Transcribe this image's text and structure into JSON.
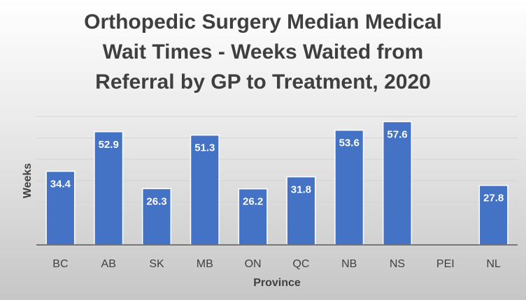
{
  "chart_data": {
    "type": "bar",
    "title": "Orthopedic Surgery Median Medical\nWait Times - Weeks Waited from\nReferral by GP to Treatment, 2020",
    "xlabel": "Province",
    "ylabel": "Weeks",
    "categories": [
      "BC",
      "AB",
      "SK",
      "MB",
      "ON",
      "QC",
      "NB",
      "NS",
      "PEI",
      "NL"
    ],
    "values": [
      34.4,
      52.9,
      26.3,
      51.3,
      26.2,
      31.8,
      53.6,
      57.6,
      null,
      27.8
    ],
    "data_labels": [
      "34.4",
      "52.9",
      "26.3",
      "51.3",
      "26.2",
      "31.8",
      "53.6",
      "57.6",
      "",
      "27.8"
    ],
    "ylim": [
      0,
      60
    ],
    "grid": true,
    "legend": "none",
    "bar_color": "#4472c4",
    "bar_edge_color": "#ffffff"
  }
}
